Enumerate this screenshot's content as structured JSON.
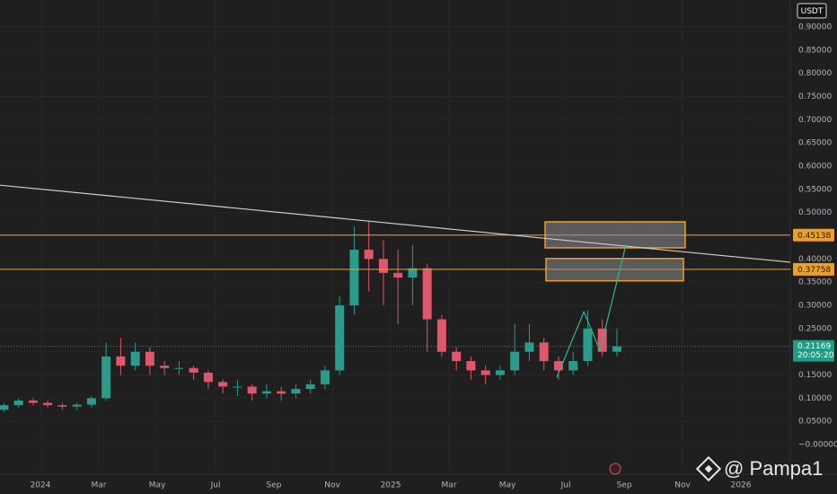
{
  "chart_data": {
    "type": "candlestick",
    "currency": "USDT",
    "watermark": "@ Pampa1",
    "up_color": "#2c9b8c",
    "down_color": "#e0566a",
    "x": [
      -1.25,
      -0.75,
      -0.25,
      0.25,
      0.75,
      1.25,
      1.75,
      2.25,
      2.75,
      3.25,
      3.75,
      4.25,
      4.75,
      5.25,
      5.75,
      6.25,
      6.75,
      7.25,
      7.75,
      8.25,
      8.75,
      9.25,
      9.75,
      10.25,
      10.75,
      11.25,
      11.75,
      12.25,
      12.75,
      13.25,
      13.75,
      14.25,
      14.75,
      15.25,
      15.75,
      16.25,
      16.75,
      17.25,
      17.75,
      18.25,
      18.75,
      19.25,
      19.75
    ],
    "open": [
      0.075,
      0.085,
      0.095,
      0.09,
      0.085,
      0.082,
      0.086,
      0.1,
      0.19,
      0.17,
      0.2,
      0.17,
      0.165,
      0.165,
      0.155,
      0.135,
      0.125,
      0.125,
      0.11,
      0.115,
      0.11,
      0.12,
      0.13,
      0.16,
      0.3,
      0.42,
      0.4,
      0.37,
      0.36,
      0.38,
      0.27,
      0.2,
      0.18,
      0.16,
      0.15,
      0.16,
      0.2,
      0.22,
      0.18,
      0.16,
      0.18,
      0.25,
      0.2
    ],
    "high": [
      0.09,
      0.1,
      0.1,
      0.095,
      0.09,
      0.09,
      0.105,
      0.22,
      0.23,
      0.22,
      0.21,
      0.18,
      0.18,
      0.17,
      0.16,
      0.14,
      0.14,
      0.13,
      0.13,
      0.125,
      0.13,
      0.14,
      0.17,
      0.32,
      0.47,
      0.48,
      0.44,
      0.42,
      0.43,
      0.39,
      0.28,
      0.21,
      0.19,
      0.17,
      0.17,
      0.26,
      0.26,
      0.23,
      0.19,
      0.2,
      0.29,
      0.27,
      0.25
    ],
    "low": [
      0.07,
      0.08,
      0.085,
      0.08,
      0.075,
      0.075,
      0.08,
      0.095,
      0.15,
      0.16,
      0.15,
      0.15,
      0.15,
      0.14,
      0.12,
      0.11,
      0.105,
      0.095,
      0.1,
      0.095,
      0.1,
      0.11,
      0.12,
      0.15,
      0.28,
      0.33,
      0.3,
      0.26,
      0.3,
      0.2,
      0.19,
      0.16,
      0.14,
      0.13,
      0.14,
      0.15,
      0.18,
      0.16,
      0.14,
      0.15,
      0.17,
      0.19,
      0.19
    ],
    "close": [
      0.085,
      0.095,
      0.09,
      0.085,
      0.082,
      0.086,
      0.1,
      0.19,
      0.17,
      0.2,
      0.17,
      0.165,
      0.165,
      0.155,
      0.135,
      0.125,
      0.125,
      0.11,
      0.115,
      0.11,
      0.12,
      0.13,
      0.16,
      0.3,
      0.42,
      0.4,
      0.37,
      0.36,
      0.38,
      0.27,
      0.2,
      0.18,
      0.16,
      0.15,
      0.16,
      0.2,
      0.22,
      0.18,
      0.16,
      0.18,
      0.25,
      0.2,
      0.21169
    ],
    "xlim": [
      -1.385,
      25.69
    ],
    "ylim": [
      -0.058,
      0.958
    ],
    "xticks": [
      {
        "value": 0,
        "label": "2024"
      },
      {
        "value": 2,
        "label": "Mar"
      },
      {
        "value": 4,
        "label": "May"
      },
      {
        "value": 6,
        "label": "Jul"
      },
      {
        "value": 8,
        "label": "Sep"
      },
      {
        "value": 10,
        "label": "Nov"
      },
      {
        "value": 12,
        "label": "2025"
      },
      {
        "value": 14,
        "label": "Mar"
      },
      {
        "value": 16,
        "label": "May"
      },
      {
        "value": 18,
        "label": "Jul"
      },
      {
        "value": 20,
        "label": "Sep"
      },
      {
        "value": 22,
        "label": "Nov"
      },
      {
        "value": 24,
        "label": "2026"
      }
    ],
    "yticks": [
      {
        "value": 0,
        "label": "−0.00000"
      },
      {
        "value": 0.05,
        "label": "0.05000"
      },
      {
        "value": 0.1,
        "label": "0.10000"
      },
      {
        "value": 0.15,
        "label": "0.15000"
      },
      {
        "value": 0.2,
        "label": "0.20000"
      },
      {
        "value": 0.25,
        "label": "0.25000"
      },
      {
        "value": 0.3,
        "label": "0.30000"
      },
      {
        "value": 0.35,
        "label": "0.35000"
      },
      {
        "value": 0.4,
        "label": "0.40000"
      },
      {
        "value": 0.45,
        "label": "0.45000"
      },
      {
        "value": 0.5,
        "label": "0.50000"
      },
      {
        "value": 0.55,
        "label": "0.55000"
      },
      {
        "value": 0.6,
        "label": "0.60000"
      },
      {
        "value": 0.65,
        "label": "0.65000"
      },
      {
        "value": 0.7,
        "label": "0.70000"
      },
      {
        "value": 0.75,
        "label": "0.75000"
      },
      {
        "value": 0.8,
        "label": "0.80000"
      },
      {
        "value": 0.85,
        "label": "0.85000"
      },
      {
        "value": 0.9,
        "label": "0.90000"
      }
    ],
    "levels": [
      {
        "value": 0.45138,
        "color": "#f0a020"
      },
      {
        "value": 0.37758,
        "color": "#f0a020"
      }
    ],
    "last_price": {
      "value": 0.21169,
      "countdown": "20:05:20",
      "color": "#1f9c86"
    },
    "boxes": [
      {
        "x": [
          17.29,
          22.09
        ],
        "y": [
          0.424,
          0.48
        ],
        "color": "#f0a020"
      },
      {
        "x": [
          17.32,
          22.03
        ],
        "y": [
          0.353,
          0.401
        ],
        "color": "#f0a020"
      }
    ],
    "trendline": {
      "x": [
        -1.385,
        25.69
      ],
      "y": [
        0.559,
        0.393
      ],
      "color": "#d0d0d0"
    },
    "projection": {
      "x": [
        17.69,
        18.62,
        19.17,
        20.06
      ],
      "y": [
        0.145,
        0.286,
        0.203,
        0.431
      ],
      "color": "#2fb59a"
    }
  }
}
